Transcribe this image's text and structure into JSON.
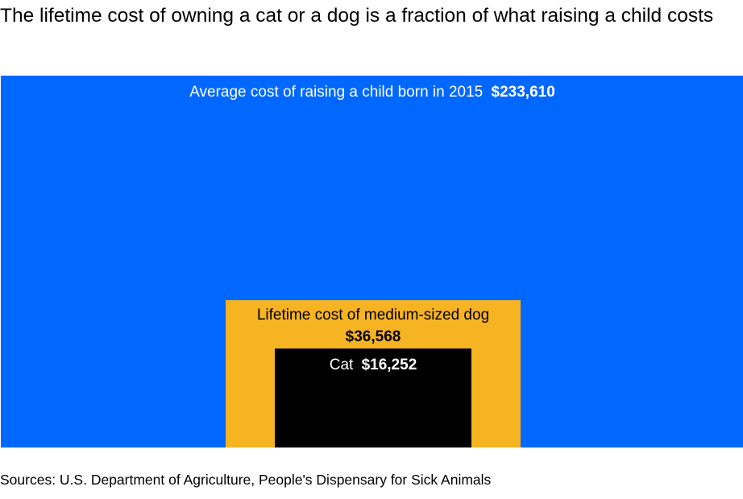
{
  "title": "The lifetime cost of owning a cat or a dog is a fraction of what raising a child costs",
  "source": "Sources: U.S. Department of Agriculture, People's Dispensary for Sick Animals",
  "chart_data": {
    "type": "nested-area",
    "series": [
      {
        "name": "child",
        "label": "Average cost of raising a child born in 2015",
        "value_label": "$233,610",
        "value": 233610,
        "color": "#0068ff",
        "text_color": "#ffffff"
      },
      {
        "name": "dog",
        "label": "Lifetime cost of medium-sized dog",
        "value_label": "$36,568",
        "value": 36568,
        "color": "#f6b322",
        "text_color": "#000000"
      },
      {
        "name": "cat",
        "label": "Cat",
        "value_label": "$16,252",
        "value": 16252,
        "color": "#000000",
        "text_color": "#ffffff"
      }
    ]
  }
}
